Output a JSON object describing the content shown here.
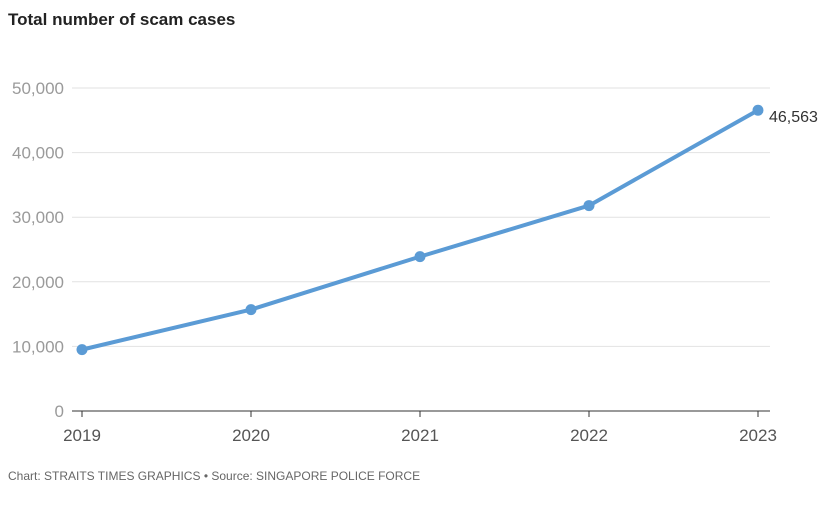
{
  "chart_data": {
    "type": "line",
    "title": "Total number of scam cases",
    "x": [
      "2019",
      "2020",
      "2021",
      "2022",
      "2023"
    ],
    "series": [
      {
        "values": [
          9500,
          15700,
          23900,
          31800,
          46563
        ],
        "color": "#5b9bd5"
      }
    ],
    "ylim": [
      0,
      50000
    ],
    "yticks": [
      0,
      10000,
      20000,
      30000,
      40000,
      50000
    ],
    "ytick_labels": [
      "0",
      "10,000",
      "20,000",
      "30,000",
      "40,000",
      "50,000"
    ],
    "data_labels": [
      {
        "x": "2023",
        "text": "46,563"
      }
    ],
    "grid": true,
    "footer": "Chart: STRAITS TIMES GRAPHICS • Source: SINGAPORE POLICE FORCE"
  }
}
